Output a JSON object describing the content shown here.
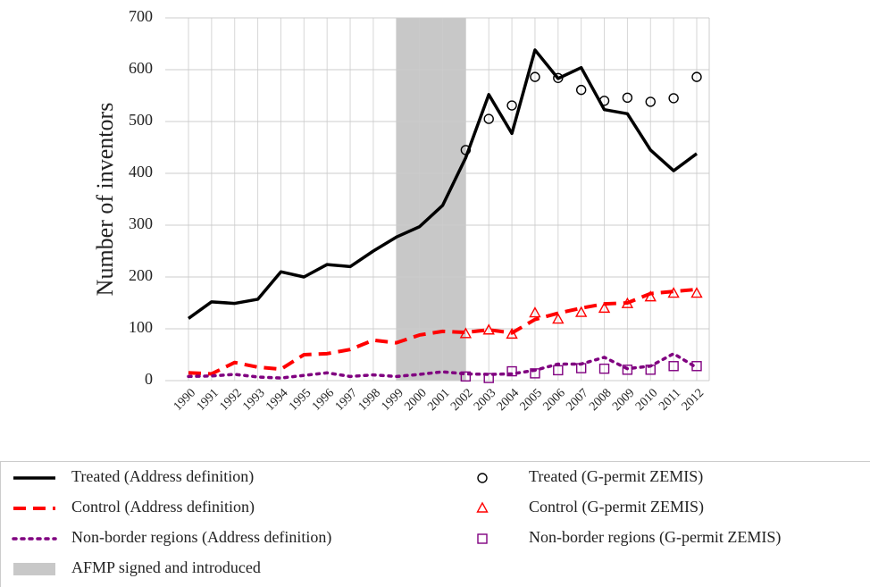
{
  "chart_data": {
    "type": "line",
    "y_label": "Number of inventors",
    "categories": [
      "1990",
      "1991",
      "1992",
      "1993",
      "1994",
      "1995",
      "1996",
      "1997",
      "1998",
      "1999",
      "2000",
      "2001",
      "2002",
      "2003",
      "2004",
      "2005",
      "2006",
      "2007",
      "2008",
      "2009",
      "2010",
      "2011",
      "2012"
    ],
    "ylim": [
      0,
      700
    ],
    "yticks": [
      0,
      100,
      200,
      300,
      400,
      500,
      600,
      700
    ],
    "grid": true,
    "shaded_span": {
      "label": "AFMP signed and introduced",
      "from": "1999",
      "to": "2002",
      "color": "#c8c8c8"
    },
    "series": [
      {
        "name": "Treated (Address definition)",
        "mark": "line",
        "style": "solid",
        "color": "#000000",
        "values": [
          120,
          152,
          149,
          157,
          210,
          200,
          224,
          220,
          250,
          277,
          297,
          338,
          430,
          552,
          477,
          638,
          583,
          604,
          523,
          515,
          445,
          405,
          438
        ]
      },
      {
        "name": "Control (Address definition)",
        "mark": "line",
        "style": "dashed",
        "color": "#ff0000",
        "values": [
          15,
          13,
          35,
          26,
          22,
          50,
          52,
          60,
          78,
          73,
          88,
          95,
          93,
          98,
          92,
          118,
          130,
          140,
          148,
          150,
          168,
          172,
          176
        ]
      },
      {
        "name": "Non-border regions (Address definition)",
        "mark": "line",
        "style": "dotted",
        "color": "#800080",
        "values": [
          8,
          9,
          12,
          7,
          5,
          10,
          15,
          8,
          11,
          8,
          12,
          17,
          13,
          12,
          13,
          20,
          32,
          32,
          45,
          23,
          28,
          52,
          25
        ]
      },
      {
        "name": "Treated (G-permit ZEMIS)",
        "mark": "scatter",
        "marker": "circle",
        "color": "#000000",
        "values": [
          null,
          null,
          null,
          null,
          null,
          null,
          null,
          null,
          null,
          null,
          null,
          null,
          445,
          505,
          531,
          586,
          584,
          561,
          540,
          546,
          538,
          545,
          586
        ]
      },
      {
        "name": "Control (G-permit ZEMIS)",
        "mark": "scatter",
        "marker": "triangle",
        "color": "#ff0000",
        "values": [
          null,
          null,
          null,
          null,
          null,
          null,
          null,
          null,
          null,
          null,
          null,
          null,
          90,
          97,
          89,
          130,
          118,
          131,
          139,
          148,
          161,
          168,
          168
        ]
      },
      {
        "name": "Non-border regions (G-permit ZEMIS)",
        "mark": "scatter",
        "marker": "square",
        "color": "#800080",
        "values": [
          null,
          null,
          null,
          null,
          null,
          null,
          null,
          null,
          null,
          null,
          null,
          null,
          8,
          5,
          18,
          14,
          20,
          24,
          23,
          21,
          21,
          28,
          28
        ]
      }
    ]
  }
}
